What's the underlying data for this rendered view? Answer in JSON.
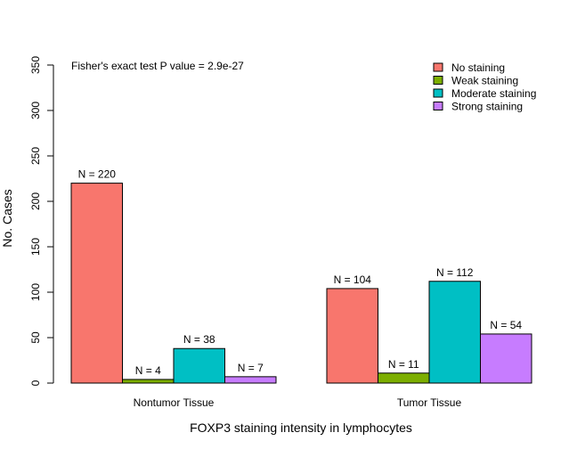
{
  "chart_data": {
    "type": "bar",
    "title": "",
    "annotation": "Fisher's exact test P value = 2.9e-27",
    "xlabel": "FOXP3 staining intensity in lymphocytes",
    "ylabel": "No. Cases",
    "ylim": [
      0,
      350
    ],
    "yticks": [
      "0",
      "50",
      "100",
      "150",
      "200",
      "250",
      "300",
      "350"
    ],
    "grid": false,
    "legend_position": "top-right",
    "categories": [
      "Nontumor Tissue",
      "Tumor Tissue"
    ],
    "series": [
      {
        "name": "No staining",
        "color": "#F8766D",
        "values": [
          220,
          104
        ],
        "labels": [
          "N = 220",
          "N = 104"
        ]
      },
      {
        "name": "Weak staining",
        "color": "#7CAE00",
        "values": [
          4,
          11
        ],
        "labels": [
          "N = 4",
          "N = 11"
        ]
      },
      {
        "name": "Moderate staining",
        "color": "#00BFC4",
        "values": [
          38,
          112
        ],
        "labels": [
          "N = 38",
          "N = 112"
        ]
      },
      {
        "name": "Strong staining",
        "color": "#C77CFF",
        "values": [
          7,
          54
        ],
        "labels": [
          "N = 7",
          "N = 54"
        ]
      }
    ]
  }
}
